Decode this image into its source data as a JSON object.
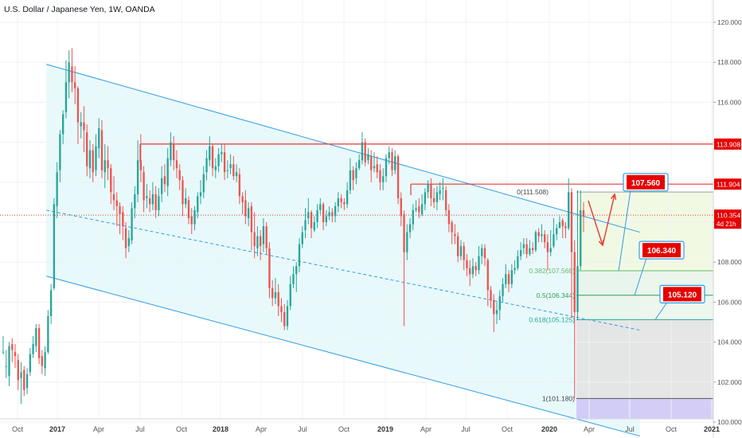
{
  "header": {
    "title": "U.S. Dollar / Japanese Yen, 1W, OANDA"
  },
  "colors": {
    "up": "#26a69a",
    "down": "#ef5350",
    "channel": "#2f9de4",
    "resistance": "#e53935",
    "badge": "#e60000",
    "fill_channel": "#e0f7fa",
    "fill_green": "#e8f5e9",
    "fill_yellowgreen": "#f1f8e0",
    "fill_grey": "#e3e3e3",
    "fill_purple": "#cfc8f5",
    "axis_text": "#555555"
  },
  "chart_data": {
    "type": "candlestick",
    "ylim": [
      98.6,
      121.0
    ],
    "y_axis_ticks": [
      "100.000",
      "102.000",
      "104.000",
      "106.000",
      "108.000",
      "110.000",
      "112.000",
      "114.000",
      "116.000",
      "118.000",
      "120.000"
    ],
    "x_axis_labels": [
      "Oct",
      "2017",
      "Apr",
      "Jul",
      "Oct",
      "2018",
      "Apr",
      "Jul",
      "Oct",
      "2019",
      "Apr",
      "Jul",
      "Oct",
      "2020",
      "Apr",
      "Jul",
      "Oct",
      "2021"
    ],
    "price_badges": [
      {
        "label": "113.908",
        "value": 113.908,
        "color": "#e60000"
      },
      {
        "label": "111.904",
        "value": 111.904,
        "color": "#e60000"
      },
      {
        "label": "110.354",
        "value": 110.354,
        "color": "#e60000"
      },
      {
        "label": "4d 21h",
        "value": 109.95,
        "color": "#e60000"
      }
    ],
    "horizontal_levels": [
      {
        "value": 113.908,
        "color": "#e53935"
      },
      {
        "value": 111.904,
        "color": "#e53935"
      },
      {
        "value": 110.354,
        "color": "#e53935",
        "style": "dotted"
      }
    ],
    "fib_levels": [
      {
        "label": "0(111.508)",
        "value": 111.508
      },
      {
        "label": "0.382(107.568)",
        "value": 107.568
      },
      {
        "label": "0.5(106.344)",
        "value": 106.344
      },
      {
        "label": "0.618(105.125)",
        "value": 105.125
      },
      {
        "label": "1(101.180)",
        "value": 101.18
      }
    ],
    "target_callouts": [
      {
        "label": "107.560",
        "value": 107.56
      },
      {
        "label": "106.340",
        "value": 106.34
      },
      {
        "label": "105.120",
        "value": 105.12
      }
    ],
    "channel": {
      "upper": [
        [
          0.065,
          117.9
        ],
        [
          0.897,
          109.5
        ]
      ],
      "middle": [
        [
          0.065,
          110.6
        ],
        [
          0.897,
          104.6
        ]
      ],
      "lower": [
        [
          0.065,
          107.3
        ],
        [
          0.897,
          99.3
        ]
      ]
    },
    "candles": [
      [
        103.5,
        103.5,
        104.3,
        103.4
      ],
      [
        102.8,
        102.8,
        103.6,
        102.2
      ],
      [
        102.3,
        103.8,
        104.0,
        101.8
      ],
      [
        103.9,
        103.6,
        104.2,
        103.0
      ],
      [
        103.5,
        103.3,
        103.9,
        102.7
      ],
      [
        103.1,
        102.1,
        103.4,
        101.6
      ],
      [
        102.2,
        102.5,
        103.0,
        100.9
      ],
      [
        102.6,
        101.6,
        102.8,
        101.3
      ],
      [
        101.7,
        102.4,
        102.7,
        101.4
      ],
      [
        102.5,
        103.4,
        103.7,
        102.3
      ],
      [
        103.4,
        103.9,
        104.3,
        103.2
      ],
      [
        103.8,
        104.7,
        104.9,
        103.5
      ],
      [
        104.7,
        103.2,
        104.9,
        102.9
      ],
      [
        103.3,
        102.8,
        103.6,
        102.4
      ],
      [
        102.7,
        103.5,
        103.8,
        102.3
      ],
      [
        103.5,
        105.3,
        105.6,
        103.4
      ],
      [
        105.3,
        106.6,
        106.9,
        104.9
      ],
      [
        106.7,
        110.9,
        111.2,
        106.6
      ],
      [
        110.8,
        112.5,
        113.0,
        110.2
      ],
      [
        112.6,
        114.4,
        114.6,
        112.0
      ],
      [
        114.4,
        115.4,
        115.6,
        113.9
      ],
      [
        115.5,
        117.0,
        118.1,
        115.2
      ],
      [
        117.0,
        118.0,
        118.6,
        116.2
      ],
      [
        117.8,
        117.0,
        118.7,
        116.5
      ],
      [
        117.0,
        116.7,
        117.8,
        115.9
      ],
      [
        116.7,
        115.0,
        116.8,
        113.9
      ],
      [
        114.8,
        115.0,
        115.5,
        114.2
      ],
      [
        115.0,
        114.6,
        115.8,
        113.5
      ],
      [
        114.5,
        112.8,
        114.9,
        112.3
      ],
      [
        112.7,
        113.6,
        114.1,
        112.2
      ],
      [
        113.6,
        112.5,
        113.9,
        112.0
      ],
      [
        112.6,
        113.8,
        114.4,
        112.3
      ],
      [
        113.7,
        114.7,
        115.2,
        113.2
      ],
      [
        114.6,
        112.6,
        115.1,
        112.2
      ],
      [
        112.5,
        113.1,
        113.9,
        111.7
      ],
      [
        113.1,
        112.7,
        113.8,
        112.1
      ],
      [
        112.7,
        111.5,
        112.9,
        110.9
      ],
      [
        111.4,
        111.1,
        112.3,
        110.6
      ],
      [
        111.1,
        110.8,
        111.5,
        109.8
      ],
      [
        110.8,
        110.4,
        111.0,
        109.4
      ],
      [
        110.5,
        109.8,
        110.8,
        109.1
      ],
      [
        109.7,
        108.7,
        110.0,
        108.2
      ],
      [
        108.8,
        109.2,
        109.6,
        108.5
      ],
      [
        109.1,
        110.7,
        111.0,
        108.9
      ],
      [
        110.7,
        111.4,
        111.8,
        110.2
      ],
      [
        111.4,
        113.1,
        114.1,
        111.0
      ],
      [
        113.1,
        112.6,
        114.4,
        112.0
      ],
      [
        112.5,
        111.1,
        112.8,
        110.5
      ],
      [
        111.2,
        111.3,
        111.9,
        110.7
      ],
      [
        111.2,
        110.9,
        111.6,
        110.5
      ],
      [
        110.9,
        111.4,
        112.0,
        110.6
      ],
      [
        111.4,
        110.6,
        111.8,
        110.2
      ],
      [
        110.6,
        111.3,
        111.7,
        110.3
      ],
      [
        111.4,
        112.2,
        112.8,
        111.0
      ],
      [
        112.3,
        111.9,
        112.9,
        111.5
      ],
      [
        111.8,
        113.2,
        113.7,
        111.3
      ],
      [
        113.1,
        114.0,
        114.5,
        112.8
      ],
      [
        113.9,
        113.1,
        114.3,
        112.6
      ],
      [
        113.1,
        112.7,
        113.6,
        112.2
      ],
      [
        112.6,
        112.1,
        112.9,
        111.6
      ],
      [
        112.1,
        110.9,
        112.3,
        110.3
      ],
      [
        110.9,
        111.2,
        111.7,
        110.7
      ],
      [
        111.1,
        110.2,
        111.3,
        109.9
      ],
      [
        110.3,
        109.9,
        110.7,
        109.4
      ],
      [
        109.9,
        110.6,
        110.8,
        109.6
      ],
      [
        110.5,
        111.3,
        111.5,
        110.2
      ],
      [
        111.3,
        111.5,
        112.1,
        110.9
      ],
      [
        111.5,
        112.4,
        112.8,
        111.2
      ],
      [
        112.5,
        113.2,
        113.6,
        112.1
      ],
      [
        113.1,
        113.8,
        114.3,
        112.8
      ],
      [
        113.8,
        112.7,
        113.9,
        112.3
      ],
      [
        112.6,
        112.8,
        113.2,
        112.2
      ],
      [
        112.8,
        113.4,
        113.7,
        112.5
      ],
      [
        113.4,
        113.5,
        113.9,
        113.0
      ],
      [
        113.5,
        112.5,
        113.9,
        112.1
      ],
      [
        112.6,
        112.6,
        113.1,
        112.2
      ],
      [
        112.7,
        112.9,
        113.4,
        112.4
      ],
      [
        112.9,
        112.3,
        113.3,
        112.1
      ],
      [
        112.3,
        112.5,
        112.9,
        112.0
      ],
      [
        112.4,
        111.3,
        112.7,
        110.9
      ],
      [
        111.3,
        111.0,
        111.5,
        110.4
      ],
      [
        111.1,
        110.3,
        111.6,
        109.9
      ],
      [
        110.2,
        110.7,
        111.0,
        109.8
      ],
      [
        110.8,
        109.5,
        111.0,
        108.6
      ],
      [
        109.5,
        108.8,
        110.5,
        108.2
      ],
      [
        108.7,
        109.3,
        109.8,
        108.3
      ],
      [
        109.3,
        108.8,
        109.6,
        108.1
      ],
      [
        108.9,
        109.8,
        110.2,
        108.5
      ],
      [
        109.8,
        108.7,
        110.0,
        108.4
      ],
      [
        108.7,
        106.7,
        109.0,
        106.2
      ],
      [
        106.7,
        106.2,
        107.1,
        105.8
      ],
      [
        106.2,
        106.5,
        107.2,
        105.9
      ],
      [
        106.5,
        105.8,
        106.9,
        105.3
      ],
      [
        105.8,
        105.5,
        106.2,
        105.0
      ],
      [
        105.5,
        104.8,
        105.9,
        104.6
      ],
      [
        104.8,
        105.8,
        106.1,
        104.6
      ],
      [
        105.8,
        106.9,
        107.3,
        105.6
      ],
      [
        106.9,
        107.4,
        107.8,
        106.7
      ],
      [
        107.4,
        107.8,
        108.0,
        106.5
      ],
      [
        107.8,
        108.9,
        109.2,
        107.5
      ],
      [
        108.9,
        109.5,
        109.8,
        108.7
      ],
      [
        109.6,
        110.1,
        110.7,
        109.2
      ],
      [
        110.2,
        110.5,
        111.2,
        109.9
      ],
      [
        110.5,
        109.7,
        110.6,
        109.2
      ],
      [
        109.6,
        110.0,
        110.3,
        109.5
      ],
      [
        110.0,
        110.6,
        110.9,
        109.7
      ],
      [
        110.6,
        110.9,
        111.2,
        110.4
      ],
      [
        110.9,
        110.0,
        111.0,
        109.6
      ],
      [
        110.0,
        110.3,
        110.6,
        109.8
      ],
      [
        110.3,
        110.5,
        110.8,
        110.1
      ],
      [
        110.5,
        110.3,
        110.7,
        110.0
      ],
      [
        110.3,
        110.8,
        111.0,
        110.0
      ],
      [
        110.8,
        111.2,
        111.5,
        110.5
      ],
      [
        111.2,
        111.0,
        111.4,
        110.7
      ],
      [
        111.0,
        110.9,
        111.2,
        110.6
      ],
      [
        110.9,
        111.6,
        112.0,
        110.7
      ],
      [
        111.6,
        112.6,
        113.2,
        111.4
      ],
      [
        112.6,
        112.1,
        112.8,
        111.6
      ],
      [
        112.2,
        112.7,
        113.0,
        111.9
      ],
      [
        112.7,
        113.1,
        113.4,
        112.6
      ],
      [
        113.1,
        114.0,
        114.5,
        112.9
      ],
      [
        114.0,
        113.0,
        114.2,
        112.8
      ],
      [
        113.1,
        113.4,
        113.7,
        112.9
      ],
      [
        113.3,
        112.6,
        113.6,
        112.0
      ],
      [
        112.7,
        112.8,
        113.5,
        112.5
      ],
      [
        112.9,
        112.5,
        113.3,
        112.2
      ],
      [
        112.6,
        112.0,
        112.9,
        111.6
      ],
      [
        112.0,
        112.3,
        112.7,
        111.6
      ],
      [
        112.3,
        113.2,
        113.4,
        112.0
      ],
      [
        113.2,
        113.5,
        113.8,
        112.9
      ],
      [
        113.5,
        112.6,
        113.7,
        112.3
      ],
      [
        112.6,
        113.3,
        113.6,
        112.4
      ],
      [
        113.3,
        111.2,
        113.4,
        110.9
      ],
      [
        111.2,
        110.3,
        111.5,
        109.8
      ],
      [
        110.4,
        108.5,
        110.6,
        104.8
      ],
      [
        108.5,
        109.5,
        109.9,
        108.1
      ],
      [
        109.5,
        109.9,
        110.2,
        109.2
      ],
      [
        109.9,
        110.6,
        110.9,
        109.6
      ],
      [
        110.6,
        110.7,
        111.1,
        110.5
      ],
      [
        110.8,
        110.5,
        111.2,
        110.2
      ],
      [
        110.4,
        110.9,
        111.4,
        110.3
      ],
      [
        110.9,
        111.5,
        111.7,
        110.6
      ],
      [
        111.5,
        111.9,
        112.1,
        111.2
      ],
      [
        111.9,
        111.2,
        112.2,
        110.8
      ],
      [
        111.2,
        111.0,
        111.7,
        110.7
      ],
      [
        111.0,
        111.5,
        111.8,
        110.6
      ],
      [
        111.4,
        111.6,
        112.0,
        111.1
      ],
      [
        111.7,
        111.7,
        112.2,
        111.1
      ],
      [
        111.6,
        110.6,
        111.8,
        110.3
      ],
      [
        110.6,
        109.9,
        110.9,
        109.5
      ],
      [
        110.0,
        109.5,
        110.1,
        108.9
      ],
      [
        109.4,
        109.3,
        109.9,
        108.9
      ],
      [
        109.3,
        108.3,
        109.5,
        108.0
      ],
      [
        108.3,
        108.8,
        109.1,
        108.1
      ],
      [
        108.8,
        108.1,
        109.0,
        107.6
      ],
      [
        108.1,
        107.7,
        108.4,
        107.3
      ],
      [
        107.7,
        107.4,
        108.1,
        106.8
      ],
      [
        107.4,
        107.8,
        108.2,
        107.2
      ],
      [
        107.8,
        107.6,
        108.0,
        107.3
      ],
      [
        107.6,
        108.3,
        108.8,
        107.4
      ],
      [
        108.3,
        108.7,
        108.9,
        107.9
      ],
      [
        108.7,
        108.2,
        108.9,
        107.8
      ],
      [
        108.1,
        106.6,
        108.2,
        105.8
      ],
      [
        106.6,
        106.1,
        106.8,
        105.7
      ],
      [
        106.1,
        105.4,
        106.4,
        104.5
      ],
      [
        105.4,
        105.6,
        106.0,
        104.9
      ],
      [
        105.6,
        106.3,
        106.6,
        105.1
      ],
      [
        106.3,
        106.9,
        107.2,
        106.0
      ],
      [
        106.9,
        107.4,
        107.9,
        106.7
      ],
      [
        107.4,
        106.9,
        107.6,
        106.5
      ],
      [
        106.9,
        107.6,
        107.9,
        106.7
      ],
      [
        107.6,
        107.7,
        108.1,
        107.4
      ],
      [
        107.7,
        108.3,
        108.6,
        107.6
      ],
      [
        108.3,
        108.6,
        109.0,
        108.1
      ],
      [
        108.7,
        108.9,
        109.2,
        108.4
      ],
      [
        108.9,
        108.4,
        109.2,
        108.2
      ],
      [
        108.4,
        108.7,
        109.1,
        108.3
      ],
      [
        108.7,
        108.6,
        109.0,
        108.4
      ],
      [
        108.6,
        109.5,
        109.6,
        108.5
      ],
      [
        109.5,
        109.3,
        109.7,
        109.0
      ],
      [
        109.3,
        109.4,
        109.9,
        109.0
      ],
      [
        109.4,
        109.0,
        109.6,
        108.7
      ],
      [
        109.0,
        108.5,
        109.4,
        107.6
      ],
      [
        108.5,
        108.7,
        109.6,
        108.3
      ],
      [
        108.8,
        109.4,
        110.2,
        108.7
      ],
      [
        109.4,
        109.7,
        109.9,
        109.1
      ],
      [
        109.7,
        110.0,
        110.3,
        109.7
      ],
      [
        110.1,
        109.8,
        110.2,
        109.2
      ],
      [
        109.8,
        109.7,
        110.0,
        109.2
      ],
      [
        109.7,
        111.5,
        112.2,
        109.6
      ],
      [
        111.5,
        108.5,
        111.7,
        105.2
      ],
      [
        108.5,
        105.5,
        109.1,
        101.2
      ],
      [
        105.5,
        107.8,
        111.6,
        105.1
      ],
      [
        107.8,
        110.6,
        111.6,
        107.6
      ],
      [
        110.6,
        110.3,
        111.0,
        109.5
      ]
    ]
  }
}
